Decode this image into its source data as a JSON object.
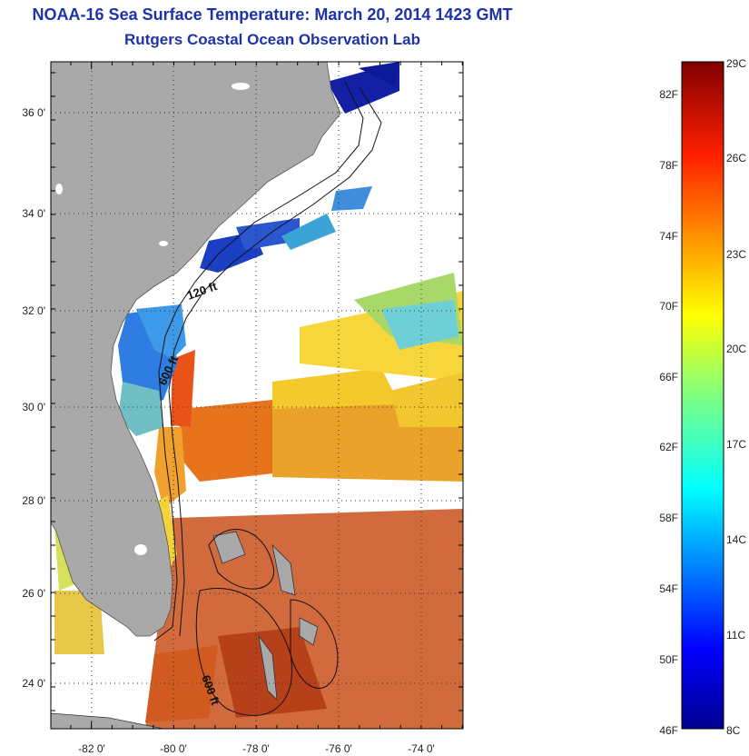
{
  "header": {
    "title": "NOAA-16 Sea Surface Temperature:  March 20, 2014 1423 GMT",
    "subtitle": "Rutgers Coastal Ocean Observation Lab"
  },
  "map": {
    "lon_range": [
      -83,
      -73
    ],
    "lat_range": [
      23,
      37
    ],
    "lon_ticks": [
      "-82 0'",
      "-80 0'",
      "-78 0'",
      "-76 0'",
      "-74 0'"
    ],
    "lat_ticks": [
      "36 0'",
      "34 0'",
      "32 0'",
      "30 0'",
      "28 0'",
      "26 0'",
      "24 0'"
    ],
    "contour_labels": [
      "120 ft",
      "600 ft",
      "600 ft"
    ],
    "land_color": "#a9a9a9",
    "cloud_color": "#ffffff"
  },
  "colorbar": {
    "fahrenheit_labels": [
      "82F",
      "78F",
      "74F",
      "70F",
      "66F",
      "62F",
      "58F",
      "54F",
      "50F",
      "46F"
    ],
    "celsius_labels": [
      "29C",
      "26C",
      "23C",
      "20C",
      "17C",
      "14C",
      "11C",
      "8C"
    ],
    "colormap": "jet",
    "range_c": [
      8,
      29
    ]
  }
}
